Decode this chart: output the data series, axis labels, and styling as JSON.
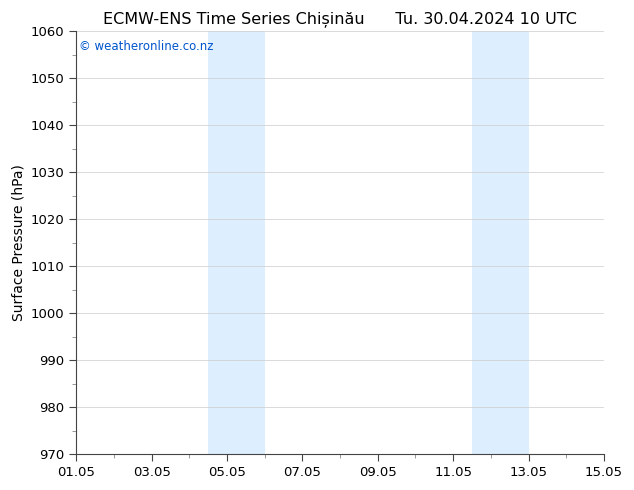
{
  "title": "ECMW-ENS Time Series Chișinău",
  "title_right": "Tu. 30.04.2024 10 UTC",
  "ylabel": "Surface Pressure (hPa)",
  "ylim": [
    970,
    1060
  ],
  "yticks": [
    970,
    980,
    990,
    1000,
    1010,
    1020,
    1030,
    1040,
    1050,
    1060
  ],
  "xlim_start": 0,
  "xlim_end": 14,
  "xtick_positions": [
    0,
    2,
    4,
    6,
    8,
    10,
    12,
    14
  ],
  "xtick_labels": [
    "01.05",
    "03.05",
    "05.05",
    "07.05",
    "09.05",
    "11.05",
    "13.05",
    "15.05"
  ],
  "shaded_bands": [
    {
      "xmin": 3.5,
      "xmax": 5.0,
      "color": "#ddeeff"
    },
    {
      "xmin": 10.5,
      "xmax": 12.0,
      "color": "#ddeeff"
    }
  ],
  "copyright_text": "© weatheronline.co.nz",
  "copyright_color": "#0055cc",
  "bg_color": "#ffffff",
  "plot_bg_color": "#ffffff",
  "grid_color": "#cccccc",
  "title_fontsize": 11.5,
  "axis_fontsize": 10,
  "tick_fontsize": 9.5
}
